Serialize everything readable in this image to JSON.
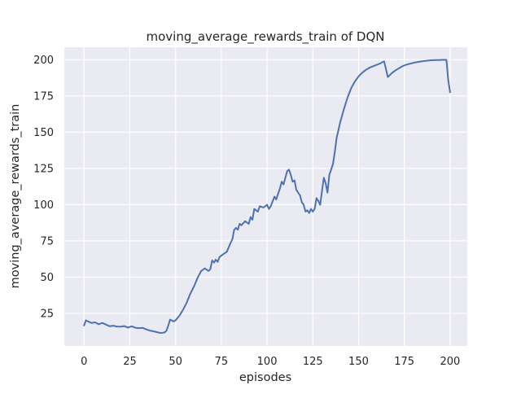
{
  "chart_data": {
    "type": "line",
    "title": "moving_average_rewards_train of DQN",
    "xlabel": "episodes",
    "ylabel": "moving_average_rewards_train",
    "xticks": [
      0,
      25,
      50,
      75,
      100,
      125,
      150,
      175,
      200
    ],
    "yticks": [
      25,
      50,
      75,
      100,
      125,
      150,
      175,
      200
    ],
    "xlim": [
      -10.8,
      209.4
    ],
    "ylim": [
      2.5,
      208.6
    ],
    "grid": true,
    "legend": "none",
    "series": [
      {
        "name": "moving_average_rewards_train",
        "x": [
          0,
          1,
          2,
          4,
          6,
          8,
          10,
          12,
          14,
          16,
          18,
          20,
          22,
          24,
          26,
          28,
          30,
          32,
          34,
          36,
          38,
          40,
          42,
          44,
          45,
          46,
          47,
          48,
          49,
          50,
          52,
          54,
          56,
          58,
          60,
          62,
          64,
          66,
          68,
          69,
          70,
          71,
          72,
          73,
          74,
          76,
          78,
          80,
          81,
          82,
          83,
          84,
          85,
          86,
          88,
          90,
          91,
          92,
          93,
          95,
          96,
          98,
          100,
          101,
          102,
          104,
          105,
          107,
          108,
          109,
          111,
          112,
          113,
          114,
          115,
          116,
          118,
          119,
          120,
          121,
          122,
          123,
          124,
          125,
          126,
          127,
          128,
          129,
          130,
          131,
          132,
          133,
          134,
          136,
          137,
          138,
          140,
          142,
          144,
          146,
          148,
          150,
          152,
          154,
          156,
          158,
          160,
          162,
          163,
          164,
          166,
          168,
          170,
          172,
          174,
          176,
          178,
          180,
          182,
          184,
          186,
          188,
          190,
          192,
          194,
          196,
          198,
          199,
          200
        ],
        "y": [
          16.6,
          20.2,
          19.5,
          18.4,
          18.8,
          17.5,
          18.4,
          17.2,
          16.1,
          16.5,
          15.9,
          15.8,
          16.2,
          15.2,
          16.1,
          15.1,
          14.8,
          15.0,
          13.9,
          13.1,
          12.6,
          12.0,
          11.4,
          11.8,
          13.0,
          16.5,
          20.7,
          20.0,
          19.4,
          20.3,
          23.2,
          27.3,
          32.2,
          38.5,
          43.5,
          49.5,
          54.2,
          56.0,
          54.3,
          55.5,
          61.5,
          60.0,
          62.0,
          60.5,
          63.8,
          65.8,
          67.5,
          73.5,
          76.0,
          82.5,
          84.0,
          82.7,
          86.8,
          85.8,
          88.6,
          86.8,
          91.4,
          89.6,
          97.0,
          95.2,
          98.9,
          98.0,
          99.9,
          97.0,
          98.9,
          105.5,
          103.6,
          111.1,
          115.8,
          113.9,
          123.2,
          124.2,
          120.4,
          115.8,
          116.7,
          110.2,
          106.4,
          101.7,
          99.9,
          95.2,
          96.1,
          94.2,
          97.0,
          95.2,
          97.0,
          104.5,
          102.6,
          99.9,
          109.2,
          118.6,
          114.8,
          108.3,
          120.4,
          128.0,
          136.0,
          146.0,
          157.0,
          166.0,
          174.0,
          180.5,
          185.0,
          188.5,
          191.0,
          193.0,
          194.5,
          195.5,
          196.5,
          197.5,
          198.3,
          198.8,
          188.0,
          190.5,
          192.5,
          194.0,
          195.5,
          196.5,
          197.2,
          197.8,
          198.3,
          198.8,
          199.1,
          199.4,
          199.6,
          199.7,
          199.8,
          199.9,
          199.9,
          186.0,
          177.5
        ]
      }
    ],
    "colors": {
      "line": "#4c72b0",
      "panel_background": "#eaeaf2",
      "grid": "#ffffff",
      "text": "#262626",
      "figure_background": "#ffffff"
    }
  }
}
